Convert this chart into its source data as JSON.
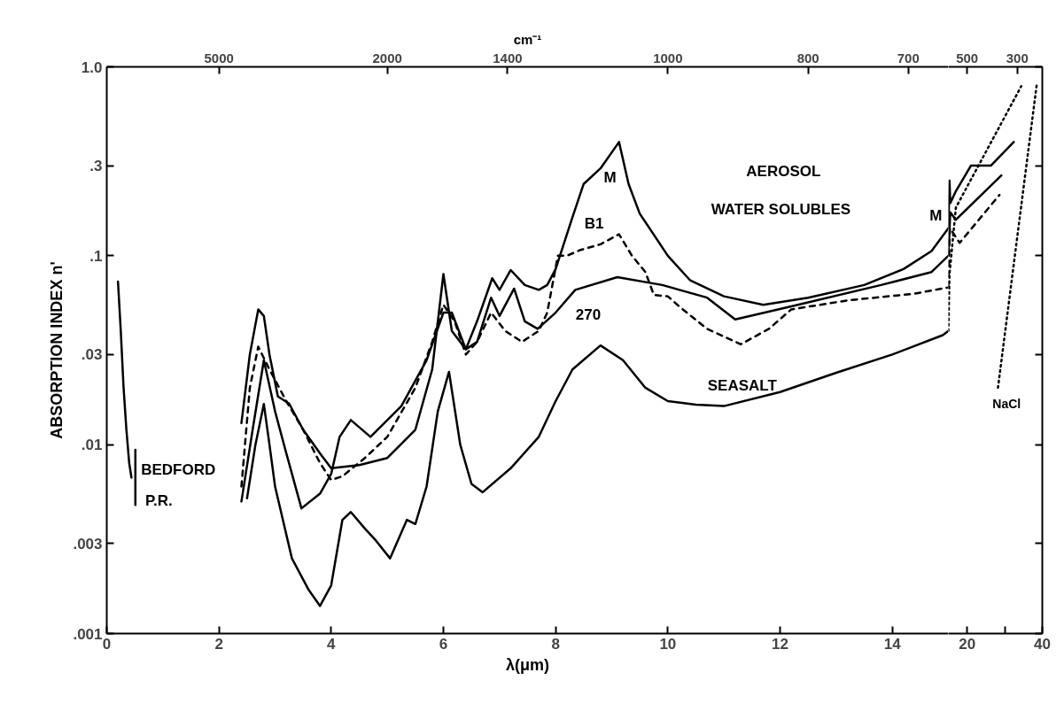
{
  "chart_data": [
    {
      "type": "line",
      "xlabel": "λ(μm)",
      "ylabel": "ABSORPTION INDEX n'",
      "log": true,
      "grid": false,
      "xlim": [
        0,
        15
      ],
      "xticks": [
        0,
        2,
        4,
        6,
        8,
        10,
        12,
        14
      ],
      "ylim": [
        0.001,
        1.0
      ],
      "yticks": [
        {
          "value": 0.001,
          "label": ".001"
        },
        {
          "value": 0.003,
          "label": ".003"
        },
        {
          "value": 0.01,
          "label": ".01"
        },
        {
          "value": 0.03,
          "label": ".03"
        },
        {
          "value": 0.1,
          "label": ".1"
        },
        {
          "value": 0.3,
          "label": ".3"
        },
        {
          "value": 1.0,
          "label": "1.0"
        }
      ],
      "series": [
        {
          "color": "#000000",
          "line_style": "solid",
          "x": [
            0.2,
            0.25,
            0.3,
            0.35,
            0.4,
            0.44
          ],
          "values": [
            0.073,
            0.04,
            0.02,
            0.012,
            0.008,
            0.0067
          ]
        },
        {
          "color": "#000000",
          "line_style": "solid",
          "x": [
            0.51,
            0.51
          ],
          "values": [
            0.0094,
            0.0048
          ]
        },
        {
          "color": "#000000",
          "line_style": "solid",
          "x": [
            2.4,
            2.55,
            2.7,
            2.8,
            2.9,
            3.05,
            3.25,
            3.5,
            3.8,
            4.0,
            4.5,
            5.0,
            5.5,
            5.8,
            6.0,
            6.15,
            6.4,
            6.6,
            6.87,
            7.0,
            7.2,
            7.45,
            7.7,
            7.85,
            8.0,
            8.3,
            8.5,
            8.8,
            9.13,
            9.3,
            9.5,
            10.0,
            10.4,
            11.0,
            11.7,
            12.5,
            13.5,
            14.2,
            14.7,
            15.0
          ],
          "values": [
            0.013,
            0.03,
            0.052,
            0.048,
            0.03,
            0.018,
            0.0165,
            0.012,
            0.009,
            0.0075,
            0.0078,
            0.0085,
            0.012,
            0.025,
            0.08,
            0.04,
            0.032,
            0.045,
            0.076,
            0.066,
            0.084,
            0.07,
            0.066,
            0.07,
            0.085,
            0.16,
            0.24,
            0.29,
            0.4,
            0.24,
            0.167,
            0.1,
            0.074,
            0.061,
            0.055,
            0.06,
            0.07,
            0.085,
            0.106,
            0.14
          ]
        },
        {
          "color": "#000000",
          "line_style": "dashed",
          "x": [
            2.4,
            2.55,
            2.7,
            2.9,
            3.2,
            3.5,
            3.8,
            4.0,
            4.2,
            4.6,
            5.0,
            5.5,
            5.8,
            6.0,
            6.2,
            6.4,
            6.6,
            6.85,
            7.1,
            7.4,
            7.7,
            7.85,
            8.04,
            8.2,
            8.43,
            8.8,
            9.13,
            9.36,
            9.6,
            9.75,
            10.0,
            10.2,
            10.7,
            11.3,
            11.8,
            12.2,
            13.2,
            14.4,
            15.0
          ],
          "values": [
            0.006,
            0.02,
            0.033,
            0.025,
            0.017,
            0.012,
            0.008,
            0.0065,
            0.0068,
            0.0085,
            0.011,
            0.02,
            0.035,
            0.055,
            0.045,
            0.03,
            0.035,
            0.05,
            0.04,
            0.035,
            0.04,
            0.05,
            0.1,
            0.1,
            0.107,
            0.115,
            0.13,
            0.1,
            0.082,
            0.062,
            0.061,
            0.054,
            0.041,
            0.034,
            0.041,
            0.052,
            0.058,
            0.063,
            0.068
          ]
        },
        {
          "color": "#000000",
          "line_style": "solid",
          "x": [
            2.4,
            2.6,
            2.8,
            3.0,
            3.2,
            3.47,
            3.8,
            4.0,
            4.15,
            4.35,
            4.7,
            5.25,
            5.7,
            6.0,
            6.15,
            6.4,
            6.6,
            6.85,
            7.0,
            7.26,
            7.45,
            7.68,
            8.0,
            8.35,
            9.1,
            9.9,
            10.7,
            11.2,
            12.2,
            13.8,
            14.7,
            15.0
          ],
          "values": [
            0.005,
            0.012,
            0.028,
            0.015,
            0.009,
            0.0046,
            0.0055,
            0.007,
            0.011,
            0.0135,
            0.011,
            0.016,
            0.028,
            0.05,
            0.05,
            0.032,
            0.035,
            0.06,
            0.048,
            0.067,
            0.045,
            0.041,
            0.05,
            0.066,
            0.077,
            0.07,
            0.06,
            0.046,
            0.054,
            0.07,
            0.082,
            0.1
          ]
        },
        {
          "color": "#000000",
          "line_style": "solid",
          "x": [
            2.5,
            2.65,
            2.8,
            2.9,
            3.0,
            3.3,
            3.6,
            3.8,
            4.0,
            4.2,
            4.35,
            4.6,
            4.8,
            5.05,
            5.35,
            5.5,
            5.7,
            5.9,
            6.1,
            6.3,
            6.5,
            6.7,
            7.2,
            7.7,
            8.0,
            8.3,
            8.8,
            9.2,
            9.6,
            10.0,
            10.5,
            11.0,
            12.0,
            13.0,
            14.0,
            14.9,
            15.0
          ],
          "values": [
            0.0052,
            0.01,
            0.0164,
            0.01,
            0.006,
            0.0025,
            0.0017,
            0.0014,
            0.0018,
            0.004,
            0.0044,
            0.0036,
            0.0031,
            0.0025,
            0.004,
            0.0038,
            0.006,
            0.015,
            0.0243,
            0.01,
            0.0062,
            0.0056,
            0.0075,
            0.011,
            0.017,
            0.025,
            0.0335,
            0.028,
            0.02,
            0.017,
            0.0163,
            0.016,
            0.019,
            0.024,
            0.03,
            0.038,
            0.04
          ]
        }
      ],
      "annotations": [
        "5000",
        "2000",
        "1400",
        "1000",
        "800",
        "700",
        "cm⁻¹",
        "M",
        "B1",
        "270",
        "SEASALT",
        "AEROSOL",
        "WATER SOLUBLES",
        "BEDFORD",
        "P.R.",
        "M"
      ]
    },
    {
      "type": "line",
      "log": true,
      "grid": false,
      "tick_labels": "x",
      "xlim": [
        15,
        40
      ],
      "xticks": [
        20,
        {
          "value": 30,
          "label": null
        },
        40
      ],
      "ylim": [
        0.001,
        1.0
      ],
      "yticks": [
        0.001,
        0.003,
        0.01,
        0.03,
        0.1,
        0.3,
        1.0
      ],
      "series": [
        {
          "color": "#000000",
          "line_style": "solid",
          "x": [
            15,
            15.3,
            15.5,
            17,
            21,
            26.3,
            32.4
          ],
          "values": [
            0.14,
            0.25,
            0.19,
            0.22,
            0.3,
            0.3,
            0.4
          ]
        },
        {
          "color": "#000000",
          "line_style": "solid",
          "x": [
            15,
            15.5,
            17,
            29.1
          ],
          "values": [
            0.1,
            0.17,
            0.155,
            0.266
          ]
        },
        {
          "color": "#000000",
          "line_style": "dashed",
          "x": [
            15,
            15.4,
            18,
            28.6
          ],
          "values": [
            0.068,
            0.14,
            0.117,
            0.21
          ]
        },
        {
          "color": "#000000",
          "line_style": "dotted",
          "x": [
            15,
            15.3,
            17,
            34.4
          ],
          "values": [
            0.04,
            0.08,
            0.18,
            0.79
          ]
        },
        {
          "color": "#000000",
          "line_style": "dotted",
          "x": [
            28.2,
            38.5
          ],
          "values": [
            0.02,
            0.8
          ]
        }
      ],
      "annotations": [
        "500",
        "300",
        "NaCl"
      ]
    }
  ]
}
